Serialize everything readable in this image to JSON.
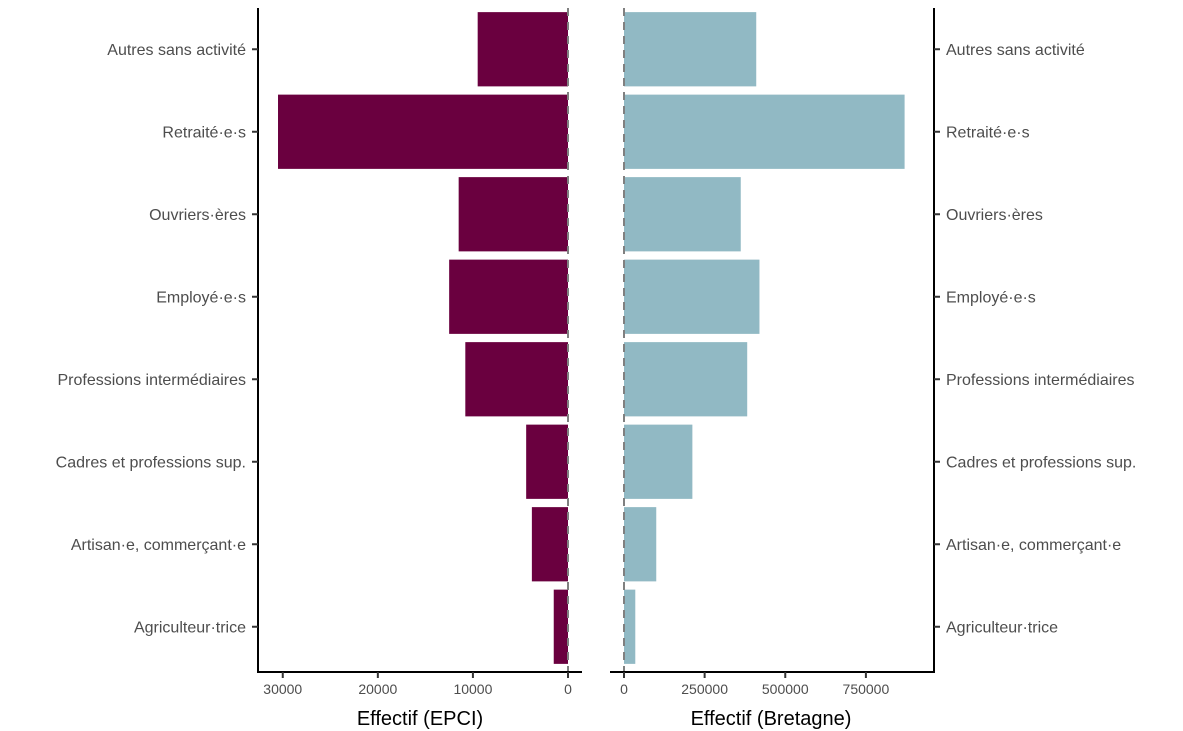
{
  "chart_data": [
    {
      "type": "bar",
      "orientation": "horizontal",
      "direction": "right-to-left",
      "xlabel": "Effectif (EPCI)",
      "categories": [
        "Autres sans activité",
        "Retraité·e·s",
        "Ouvriers·ères",
        "Employé·e·s",
        "Professions intermédiaires",
        "Cadres et professions sup.",
        "Artisan·e, commerçant·e",
        "Agriculteur·trice"
      ],
      "values": [
        9500,
        30500,
        11500,
        12500,
        10800,
        4400,
        3800,
        1500
      ],
      "xlim": [
        0,
        31500
      ],
      "ticks": [
        30000,
        20000,
        10000,
        0
      ],
      "tick_labels": [
        "30000",
        "20000",
        "10000",
        "0"
      ],
      "bar_color": "#6a003f",
      "reference_line": 0,
      "labels_side": "left"
    },
    {
      "type": "bar",
      "orientation": "horizontal",
      "direction": "left-to-right",
      "xlabel": "Effectif (Bretagne)",
      "categories": [
        "Autres sans activité",
        "Retraité·e·s",
        "Ouvriers·ères",
        "Employé·e·s",
        "Professions intermédiaires",
        "Cadres et professions sup.",
        "Artisan·e, commerçant·e",
        "Agriculteur·trice"
      ],
      "values": [
        410000,
        870000,
        362000,
        420000,
        382000,
        212000,
        100000,
        35000
      ],
      "xlim": [
        0,
        910000
      ],
      "ticks": [
        0,
        250000,
        500000,
        750000
      ],
      "tick_labels": [
        "0",
        "250000",
        "500000",
        "750000"
      ],
      "bar_color": "#91b9c4",
      "reference_line": 0,
      "labels_side": "right"
    }
  ]
}
